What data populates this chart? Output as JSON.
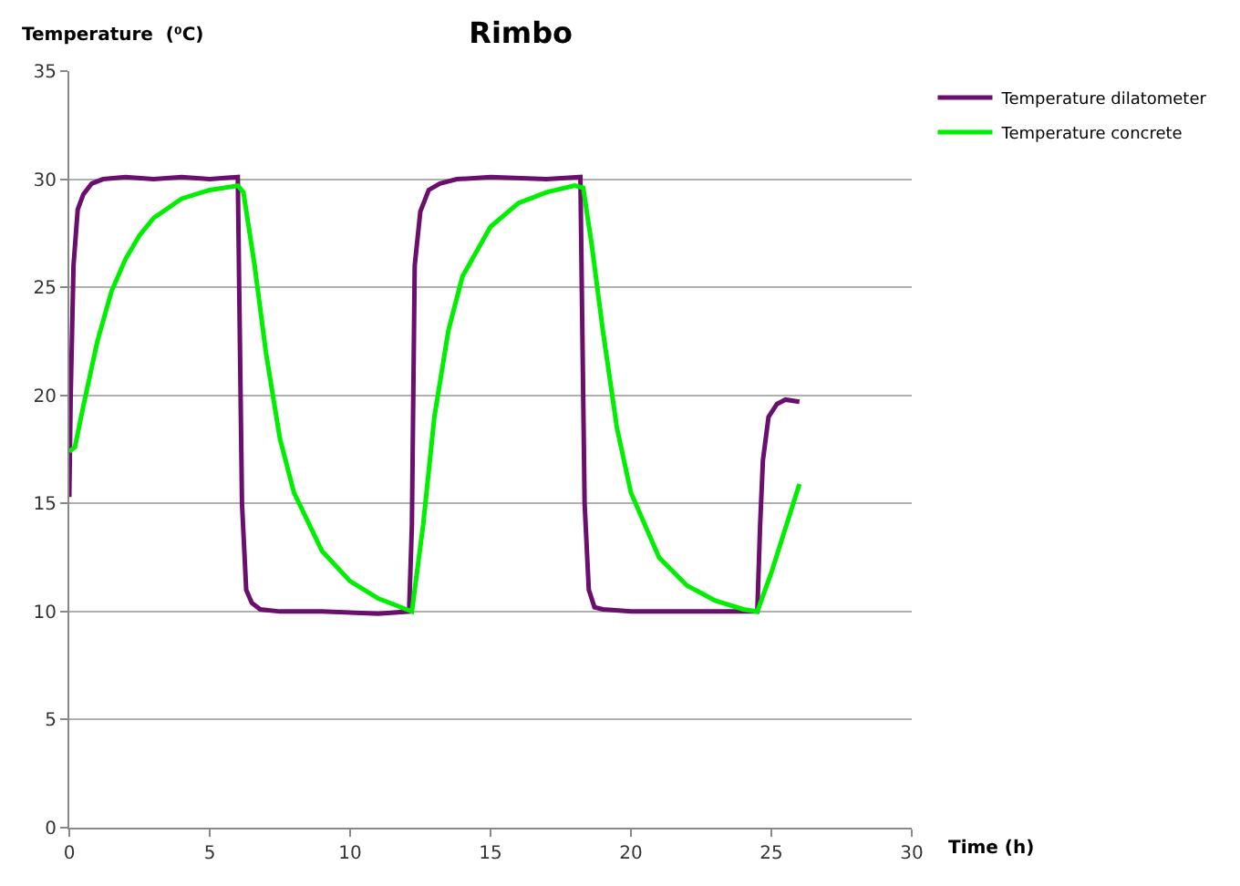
{
  "chart_data": {
    "type": "line",
    "title": "Rimbo",
    "xlabel": "Time (h)",
    "ylabel": "Temperature  (⁰C)",
    "xlim": [
      0,
      30
    ],
    "xticks": [
      0,
      5,
      10,
      15,
      20,
      25,
      30
    ],
    "ylim": [
      0,
      35
    ],
    "yticks": [
      0,
      5,
      10,
      15,
      20,
      25,
      30,
      35
    ],
    "grid": "y",
    "legend": "top right",
    "marker": "none",
    "line_style": "solid",
    "series": [
      {
        "name": "Temperature dilatometer",
        "color": "#6a0f6e",
        "x": [
          0,
          0.05,
          0.15,
          0.3,
          0.5,
          0.8,
          1.2,
          2,
          3,
          4,
          5,
          6.0,
          6.05,
          6.15,
          6.3,
          6.5,
          6.8,
          7.5,
          9,
          11,
          12.1,
          12.2,
          12.3,
          12.5,
          12.8,
          13.2,
          13.8,
          15,
          17,
          18.2,
          18.25,
          18.35,
          18.5,
          18.7,
          19,
          20,
          22,
          24.5,
          24.6,
          24.7,
          24.9,
          25.2,
          25.5,
          26
        ],
        "values": [
          15.3,
          20,
          26,
          28.6,
          29.3,
          29.8,
          30,
          30.1,
          30,
          30.1,
          30,
          30.1,
          25,
          15,
          11,
          10.4,
          10.1,
          10,
          10,
          9.9,
          10,
          14,
          26,
          28.5,
          29.5,
          29.8,
          30,
          30.1,
          30,
          30.1,
          25,
          15,
          11,
          10.2,
          10.1,
          10,
          10,
          10,
          14,
          17,
          19,
          19.6,
          19.8,
          19.7
        ]
      },
      {
        "name": "Temperature concrete",
        "color": "#00ee00",
        "x": [
          0,
          0.2,
          0.5,
          1,
          1.5,
          2,
          2.5,
          3,
          4,
          5,
          6,
          6.2,
          6.6,
          7,
          7.5,
          8,
          9,
          10,
          11,
          12,
          12.2,
          12.6,
          13,
          13.5,
          14,
          15,
          16,
          17,
          18,
          18.3,
          18.6,
          19,
          19.5,
          20,
          21,
          22,
          23,
          24,
          24.5,
          25,
          26
        ],
        "values": [
          17.4,
          17.6,
          19.5,
          22.5,
          24.8,
          26.3,
          27.4,
          28.2,
          29.1,
          29.5,
          29.7,
          29.4,
          26,
          22,
          18,
          15.5,
          12.8,
          11.4,
          10.6,
          10.1,
          10,
          14,
          19,
          23,
          25.5,
          27.8,
          28.9,
          29.4,
          29.7,
          29.6,
          27,
          23,
          18.5,
          15.5,
          12.5,
          11.2,
          10.5,
          10.1,
          10,
          11.8,
          15.9
        ]
      }
    ]
  }
}
